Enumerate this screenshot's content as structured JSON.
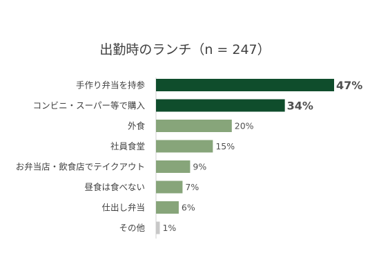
{
  "chart_data": {
    "type": "bar",
    "orientation": "horizontal",
    "title": "出勤時のランチ（n = 247）",
    "categories": [
      "手作り弁当を持参",
      "コンビニ・スーパー等で購入",
      "外食",
      "社員食堂",
      "お弁当店・飲食店でテイクアウト",
      "昼食は食べない",
      "仕出し弁当",
      "その他"
    ],
    "values": [
      47,
      34,
      20,
      15,
      9,
      7,
      6,
      1
    ],
    "value_labels": [
      "47%",
      "34%",
      "20%",
      "15%",
      "9%",
      "7%",
      "6%",
      "1%"
    ],
    "bar_colors": [
      "#0f4d2c",
      "#0f4d2c",
      "#87a57a",
      "#87a57a",
      "#87a57a",
      "#87a57a",
      "#87a57a",
      "#c8c8c8"
    ],
    "emphasized": [
      true,
      true,
      false,
      false,
      false,
      false,
      false,
      false
    ],
    "highlight_label_color": "#0f4d2c",
    "axis_line_color": "#d0d0d0",
    "xlabel": "",
    "ylabel": "",
    "xlim": [
      0,
      47
    ],
    "grid": false,
    "legend": "none"
  }
}
